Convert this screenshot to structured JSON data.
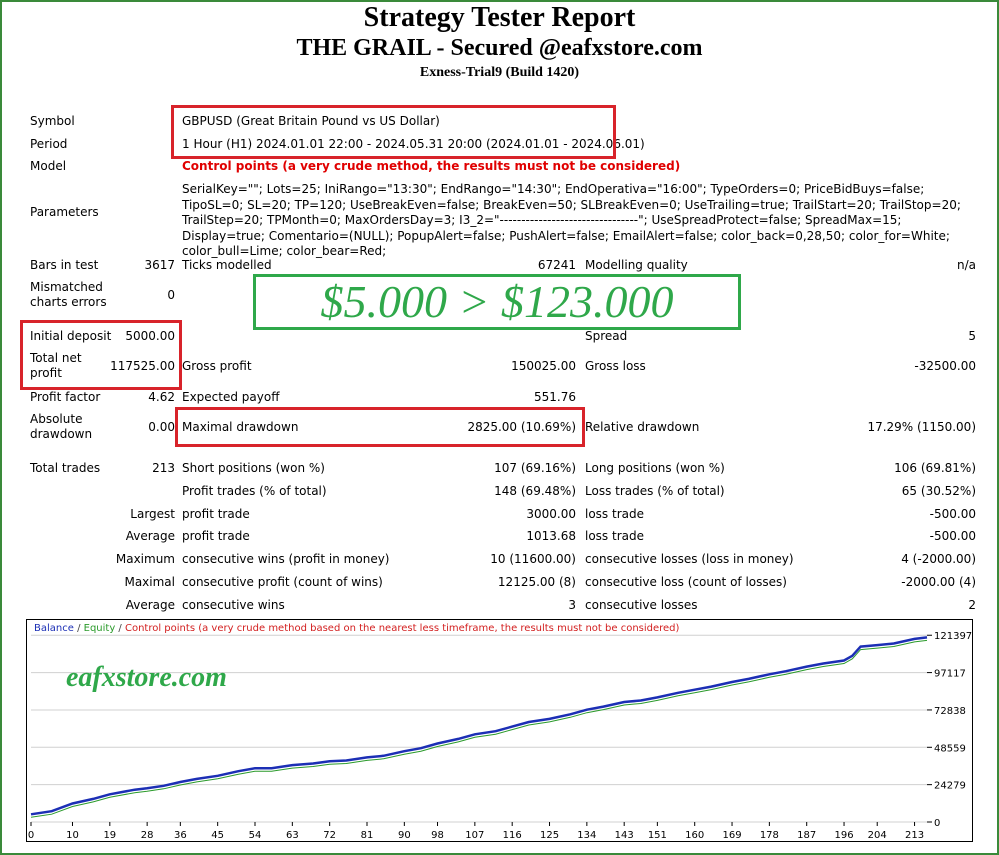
{
  "header": {
    "title": "Strategy Tester Report",
    "subtitle": "THE GRAIL - Secured @eafxstore.com",
    "server": "Exness-Trial9 (Build 1420)"
  },
  "info": {
    "symbol_label": "Symbol",
    "symbol": "GBPUSD (Great Britain Pound vs US Dollar)",
    "period_label": "Period",
    "period": "1 Hour (H1) 2024.01.01 22:00 - 2024.05.31 20:00 (2024.01.01 - 2024.06.01)",
    "model_label": "Model",
    "model": "Control points (a very crude method, the results must not be considered)",
    "parameters_label": "Parameters",
    "parameters": "SerialKey=\"\"; Lots=25; IniRango=\"13:30\"; EndRango=\"14:30\"; EndOperativa=\"16:00\"; TypeOrders=0; PriceBidBuys=false; TipoSL=0; SL=20; TP=120; UseBreakEven=false; BreakEven=50; SLBreakEven=0; UseTrailing=true; TrailStart=20; TrailStop=20; TrailStep=20; TPMonth=0; MaxOrdersDay=3; I3_2=\"--------------------------------\"; UseSpreadProtect=false; SpreadMax=15; Display=true; Comentario=(NULL); PopupAlert=false; PushAlert=false; EmailAlert=false; color_back=0,28,50; color_for=White; color_bull=Lime; color_bear=Red;"
  },
  "stats": {
    "bars_label": "Bars in test",
    "bars": "3617",
    "ticks_label": "Ticks modelled",
    "ticks": "67241",
    "quality_label": "Modelling quality",
    "quality": "n/a",
    "mismatch_label_1": "Mismatched",
    "mismatch_label_2": "charts errors",
    "mismatch": "0",
    "initial_deposit_label": "Initial deposit",
    "initial_deposit": "5000.00",
    "spread_label": "Spread",
    "spread": "5",
    "net_profit_label_1": "Total net",
    "net_profit_label_2": "profit",
    "net_profit": "117525.00",
    "gross_profit_label": "Gross profit",
    "gross_profit": "150025.00",
    "gross_loss_label": "Gross loss",
    "gross_loss": "-32500.00",
    "profit_factor_label": "Profit factor",
    "profit_factor": "4.62",
    "expected_payoff_label": "Expected payoff",
    "expected_payoff": "551.76",
    "abs_dd_label_1": "Absolute",
    "abs_dd_label_2": "drawdown",
    "abs_dd": "0.00",
    "max_dd_label": "Maximal drawdown",
    "max_dd": "2825.00 (10.69%)",
    "rel_dd_label": "Relative drawdown",
    "rel_dd": "17.29% (1150.00)",
    "total_trades_label": "Total trades",
    "total_trades": "213",
    "short_label": "Short positions (won %)",
    "short": "107 (69.16%)",
    "long_label": "Long positions (won %)",
    "long": "106 (69.81%)",
    "profit_trades_label": "Profit trades (% of total)",
    "profit_trades": "148 (69.48%)",
    "loss_trades_label": "Loss trades (% of total)",
    "loss_trades": "65 (30.52%)",
    "largest_label": "Largest",
    "largest_profit_label": "profit trade",
    "largest_profit": "3000.00",
    "largest_loss_label": "loss trade",
    "largest_loss": "-500.00",
    "average_label": "Average",
    "average_profit_label": "profit trade",
    "average_profit": "1013.68",
    "average_loss_label": "loss trade",
    "average_loss": "-500.00",
    "maximum_label": "Maximum",
    "max_wins_label": "consecutive wins (profit in money)",
    "max_wins": "10 (11600.00)",
    "max_losses_label": "consecutive losses (loss in money)",
    "max_losses": "4 (-2000.00)",
    "maximal_label": "Maximal",
    "maximal_profit_label": "consecutive profit (count of wins)",
    "maximal_profit": "12125.00 (8)",
    "maximal_loss_label": "consecutive loss (count of losses)",
    "maximal_loss": "-2000.00 (4)",
    "avg_cons_label": "Average",
    "avg_wins_label": "consecutive wins",
    "avg_wins": "3",
    "avg_losses_label": "consecutive losses",
    "avg_losses": "2"
  },
  "banner": "$5.000 > $123.000",
  "watermark": "eafxstore.com",
  "legend": {
    "balance": "Balance",
    "sep1": " / ",
    "equity": "Equity",
    "sep2": " / ",
    "control": "Control points (a very crude method based on the nearest less timeframe, the results must not be considered)"
  },
  "colors": {
    "highlight_box": "#d8232a",
    "banner_green": "#2fa84a",
    "balance": "#1c2fb5",
    "equity": "#2a9a2a"
  },
  "chart_data": {
    "type": "line",
    "x_ticks": [
      "0",
      "10",
      "19",
      "28",
      "36",
      "45",
      "54",
      "63",
      "72",
      "81",
      "90",
      "98",
      "107",
      "116",
      "125",
      "134",
      "143",
      "151",
      "160",
      "169",
      "178",
      "187",
      "196",
      "204",
      "213"
    ],
    "y_ticks": [
      "0",
      "24279",
      "48559",
      "72838",
      "97117",
      "121397"
    ],
    "xlim": [
      0,
      216
    ],
    "ylim": [
      0,
      130000
    ],
    "series": [
      {
        "name": "Balance",
        "x": [
          0,
          5,
          10,
          15,
          19,
          25,
          28,
          32,
          36,
          40,
          45,
          50,
          54,
          58,
          63,
          68,
          72,
          76,
          81,
          85,
          90,
          94,
          98,
          103,
          107,
          112,
          116,
          120,
          125,
          130,
          134,
          138,
          143,
          147,
          151,
          156,
          160,
          164,
          169,
          173,
          178,
          182,
          187,
          191,
          196,
          198,
          200,
          204,
          208,
          213,
          216
        ],
        "values": [
          5000,
          7000,
          12000,
          15000,
          18000,
          21000,
          22000,
          23500,
          26000,
          28000,
          30000,
          33000,
          35000,
          35000,
          37000,
          38000,
          39500,
          40000,
          42000,
          43000,
          46000,
          48000,
          51000,
          54000,
          57000,
          59000,
          62000,
          65000,
          67000,
          70000,
          73000,
          75000,
          78000,
          79000,
          81000,
          84000,
          86000,
          88000,
          91000,
          93000,
          96000,
          98000,
          101000,
          103000,
          105000,
          108000,
          114000,
          115000,
          116000,
          119000,
          120000
        ]
      }
    ]
  }
}
